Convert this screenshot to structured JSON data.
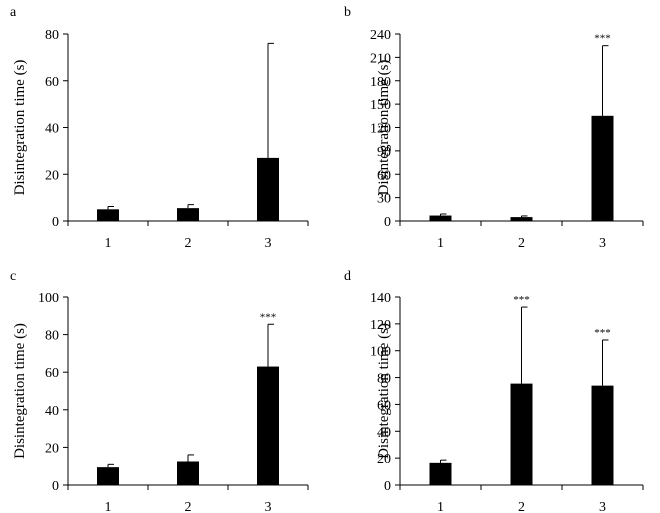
{
  "chart_data": [
    {
      "type": "bar",
      "panel": "a",
      "ylabel": "Disintegration time (s)",
      "xlabel": "",
      "categories": [
        "1",
        "2",
        "3"
      ],
      "values": [
        5,
        5.5,
        27
      ],
      "errors": [
        1.2,
        1.5,
        49
      ],
      "significance": [
        "",
        "",
        ""
      ],
      "ylim": [
        0,
        80
      ],
      "yticks": [
        "0",
        "20",
        "40",
        "60",
        "80"
      ],
      "bar_color": "#000000"
    },
    {
      "type": "bar",
      "panel": "b",
      "ylabel": "Disintegration time (s)",
      "xlabel": "",
      "categories": [
        "1",
        "2",
        "3"
      ],
      "values": [
        7,
        5,
        135
      ],
      "errors": [
        2,
        1.5,
        90
      ],
      "significance": [
        "",
        "",
        "***"
      ],
      "ylim": [
        0,
        240
      ],
      "yticks": [
        "0",
        "30",
        "60",
        "90",
        "120",
        "150",
        "180",
        "210",
        "240"
      ],
      "bar_color": "#000000"
    },
    {
      "type": "bar",
      "panel": "c",
      "ylabel": "Disintegration time (s)",
      "xlabel": "",
      "categories": [
        "1",
        "2",
        "3"
      ],
      "values": [
        9.5,
        12.5,
        63
      ],
      "errors": [
        1.5,
        3.5,
        22.5
      ],
      "significance": [
        "",
        "",
        "***"
      ],
      "ylim": [
        0,
        100
      ],
      "yticks": [
        "0",
        "20",
        "40",
        "60",
        "80",
        "100"
      ],
      "bar_color": "#000000"
    },
    {
      "type": "bar",
      "panel": "d",
      "ylabel": "Disintegration time (s)",
      "xlabel": "",
      "categories": [
        "1",
        "2",
        "3"
      ],
      "values": [
        16.5,
        75.5,
        74
      ],
      "errors": [
        2,
        57,
        34
      ],
      "significance": [
        "",
        "***",
        "***"
      ],
      "ylim": [
        0,
        140
      ],
      "yticks": [
        "0",
        "20",
        "40",
        "60",
        "80",
        "100",
        "120",
        "140"
      ],
      "bar_color": "#000000"
    }
  ]
}
